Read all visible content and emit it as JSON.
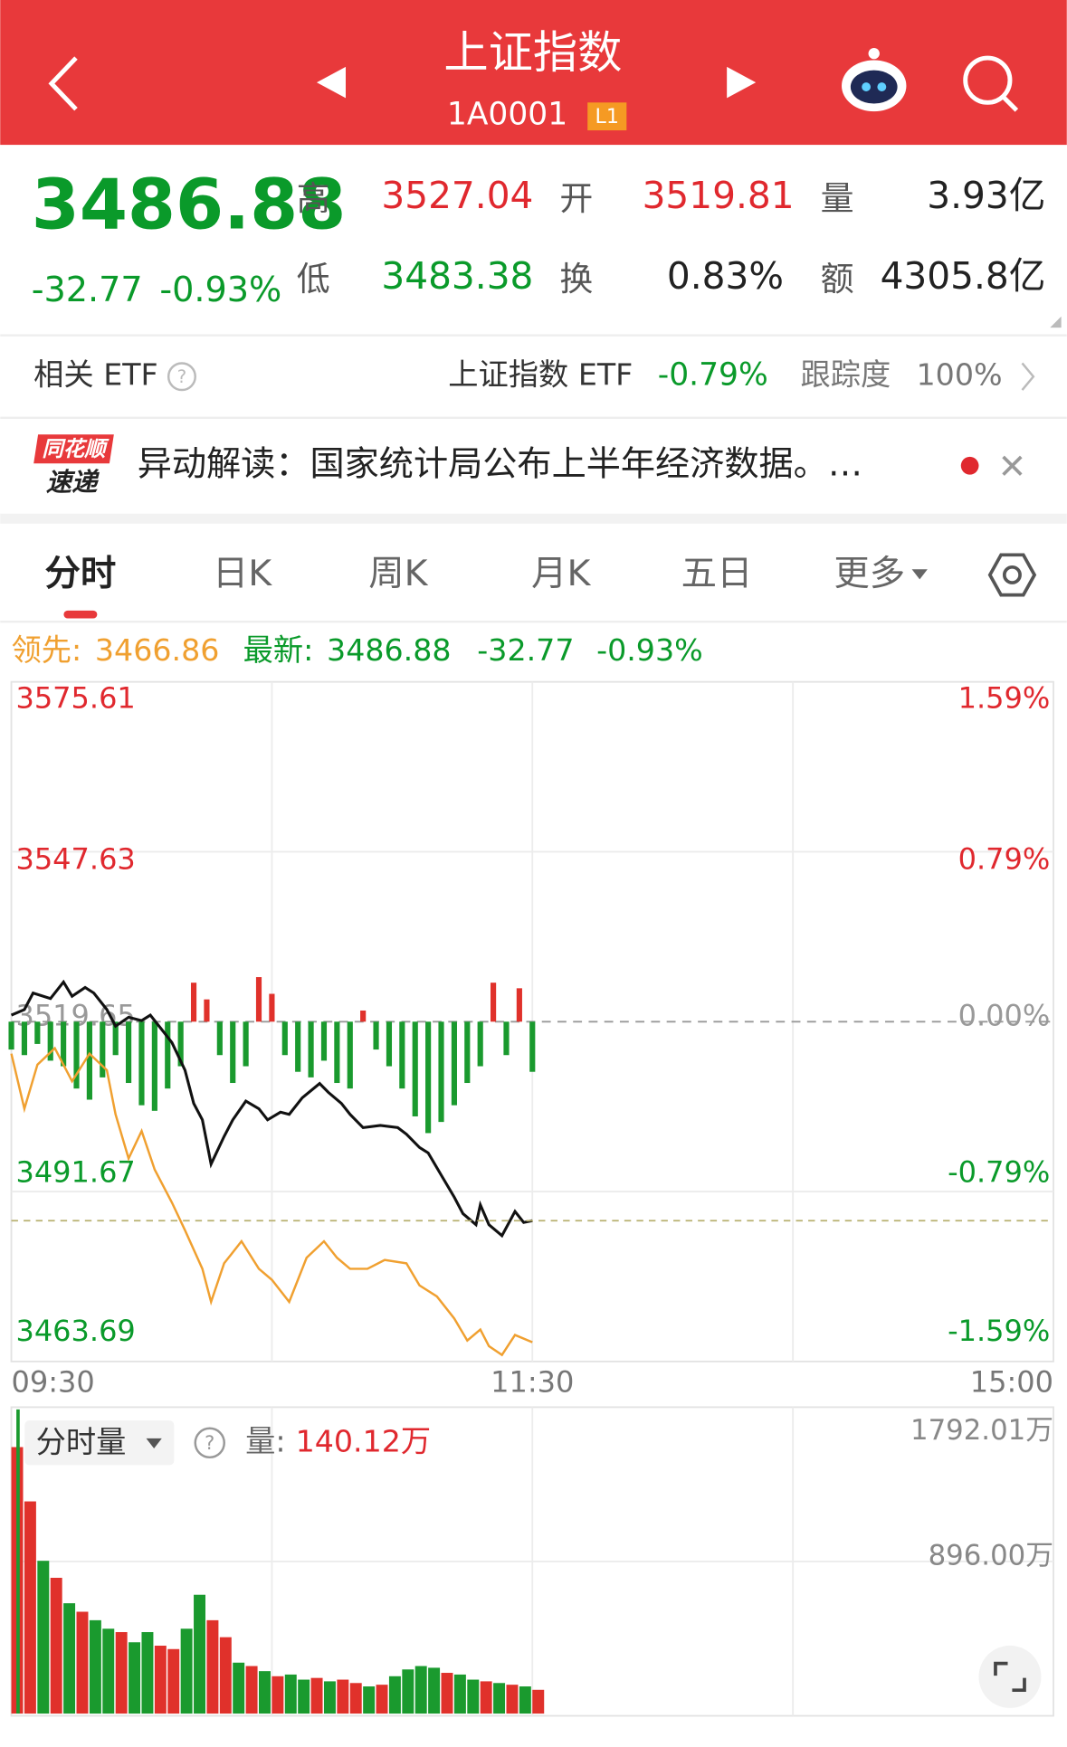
{
  "header": {
    "title": "上证指数",
    "code": "1A0001",
    "level": "L1"
  },
  "quote": {
    "price": "3486.88",
    "change": "-32.77",
    "change_pct": "-0.93%",
    "high_label": "高",
    "high": "3527.04",
    "open_label": "开",
    "open": "3519.81",
    "volume_label": "量",
    "volume": "3.93亿",
    "low_label": "低",
    "low": "3483.38",
    "turnover_label": "换",
    "turnover": "0.83%",
    "amount_label": "额",
    "amount": "4305.8亿"
  },
  "etf": {
    "label": "相关 ETF",
    "name": "上证指数 ETF",
    "change": "-0.79%",
    "tracking_label": "跟踪度",
    "tracking": "100%"
  },
  "news": {
    "badge_top": "同花顺",
    "badge_bottom": "速递",
    "text": "异动解读：国家统计局公布上半年经济数据。…"
  },
  "tabs": [
    "分时",
    "日K",
    "周K",
    "月K",
    "五日",
    "更多"
  ],
  "chart": {
    "legend": {
      "lead_label": "领先:",
      "lead": "3466.86",
      "latest_label": "最新:",
      "latest": "3486.88",
      "change": "-32.77",
      "change_pct": "-0.93%"
    },
    "ylim": [
      3463.69,
      3575.61
    ],
    "yticks": [
      3575.61,
      3547.63,
      3519.65,
      3491.67,
      3463.69
    ],
    "right_labels": [
      "1.59%",
      "0.79%",
      "0.00%",
      "-0.79%",
      "-1.59%"
    ],
    "xlim": [
      0,
      240
    ],
    "xticks": [
      {
        "value": 0,
        "label": "09:30"
      },
      {
        "value": 120,
        "label": "11:30"
      },
      {
        "value": 240,
        "label": "15:00"
      }
    ],
    "price": {
      "color": "#111111",
      "x": [
        0,
        3,
        5,
        9,
        12,
        14,
        17,
        19,
        22,
        24,
        27,
        30,
        32,
        35,
        37,
        40,
        42,
        44,
        46,
        49,
        51,
        54,
        57,
        59,
        62,
        64,
        67,
        71,
        73,
        76,
        78,
        81,
        85,
        89,
        91,
        94,
        96,
        99,
        102,
        104,
        107,
        108,
        110,
        113,
        116,
        118,
        120
      ],
      "values": [
        3520.74,
        3521.65,
        3524.37,
        3523.47,
        3526.19,
        3523.83,
        3525.28,
        3524.37,
        3521.65,
        3518.92,
        3520.38,
        3519.83,
        3520.74,
        3518.01,
        3516.2,
        3511.66,
        3506.2,
        3503.48,
        3496.21,
        3500.75,
        3503.48,
        3506.57,
        3505.3,
        3503.48,
        3504.75,
        3504.39,
        3507.11,
        3509.47,
        3508.02,
        3506.2,
        3504.39,
        3502.21,
        3502.57,
        3502.21,
        3501.12,
        3498.94,
        3498.03,
        3494.39,
        3490.76,
        3488.03,
        3486.22,
        3489.49,
        3486.22,
        3484.4,
        3488.4,
        3486.58,
        3486.88
      ]
    },
    "lead": {
      "color": "#f0a030",
      "x": [
        0,
        3,
        6,
        10,
        14,
        18,
        22,
        24,
        27,
        30,
        33,
        37,
        40,
        44,
        46,
        49,
        53,
        57,
        60,
        64,
        68,
        72,
        75,
        78,
        82,
        86,
        91,
        94,
        98,
        102,
        105,
        108,
        110,
        113,
        116,
        120
      ],
      "values": [
        3514.38,
        3505.3,
        3512.56,
        3515.29,
        3509.84,
        3514.38,
        3511.66,
        3504.39,
        3497.12,
        3501.66,
        3495.3,
        3489.85,
        3485.31,
        3478.95,
        3473.5,
        3479.86,
        3483.49,
        3478.95,
        3477.13,
        3473.5,
        3480.77,
        3483.49,
        3480.77,
        3478.95,
        3478.95,
        3480.4,
        3479.86,
        3476.23,
        3474.41,
        3470.78,
        3467.14,
        3468.96,
        3466.23,
        3464.78,
        3468.05,
        3466.86
      ]
    },
    "diff": {
      "up_color": "#e0312b",
      "down_color": "#1a9a2e",
      "x": [
        0,
        3,
        6,
        9,
        12,
        15,
        18,
        21,
        24,
        27,
        30,
        33,
        36,
        39,
        42,
        45,
        48,
        51,
        54,
        57,
        60,
        63,
        66,
        69,
        72,
        75,
        78,
        81,
        84,
        87,
        90,
        93,
        96,
        99,
        102,
        105,
        108,
        111,
        114,
        117,
        120
      ],
      "values": [
        -25,
        -30,
        -20,
        -35,
        -40,
        -60,
        -70,
        -50,
        -30,
        -55,
        -75,
        -80,
        -60,
        -40,
        35,
        20,
        -30,
        -55,
        -40,
        40,
        25,
        -30,
        -45,
        -50,
        -35,
        -55,
        -60,
        10,
        -25,
        -40,
        -60,
        -85,
        -100,
        -90,
        -75,
        -55,
        -40,
        35,
        -30,
        30,
        -45
      ]
    },
    "volume": {
      "title": "分时量",
      "label": "量:",
      "current": "140.12万",
      "ylim": [
        0,
        1792.01
      ],
      "yticks": [
        {
          "value": 896.0,
          "label": "896.00万"
        },
        {
          "value": 1792.01,
          "label": "1792.01万"
        }
      ],
      "x": [
        0,
        3,
        6,
        9,
        12,
        15,
        18,
        21,
        24,
        27,
        30,
        33,
        36,
        39,
        42,
        45,
        48,
        51,
        54,
        57,
        60,
        63,
        66,
        69,
        72,
        75,
        78,
        81,
        84,
        87,
        90,
        93,
        96,
        99,
        102,
        105,
        108,
        111,
        114,
        117,
        120
      ],
      "values": [
        1570,
        1250,
        900,
        800,
        650,
        600,
        550,
        500,
        480,
        420,
        480,
        400,
        380,
        500,
        700,
        550,
        450,
        300,
        280,
        250,
        220,
        230,
        200,
        210,
        190,
        200,
        180,
        160,
        170,
        220,
        260,
        280,
        270,
        240,
        230,
        200,
        190,
        180,
        170,
        160,
        140
      ],
      "colors": [
        "#e0312b",
        "#e0312b",
        "#1a9a2e",
        "#e0312b",
        "#1a9a2e",
        "#e0312b",
        "#1a9a2e",
        "#1a9a2e",
        "#e0312b",
        "#1a9a2e",
        "#1a9a2e",
        "#e0312b",
        "#e0312b",
        "#1a9a2e",
        "#1a9a2e",
        "#e0312b",
        "#e0312b",
        "#1a9a2e",
        "#e0312b",
        "#1a9a2e",
        "#e0312b",
        "#1a9a2e",
        "#1a9a2e",
        "#e0312b",
        "#1a9a2e",
        "#e0312b",
        "#e0312b",
        "#1a9a2e",
        "#e0312b",
        "#1a9a2e",
        "#1a9a2e",
        "#1a9a2e",
        "#1a9a2e",
        "#e0312b",
        "#1a9a2e",
        "#1a9a2e",
        "#e0312b",
        "#1a9a2e",
        "#e0312b",
        "#1a9a2e",
        "#e0312b"
      ]
    }
  }
}
